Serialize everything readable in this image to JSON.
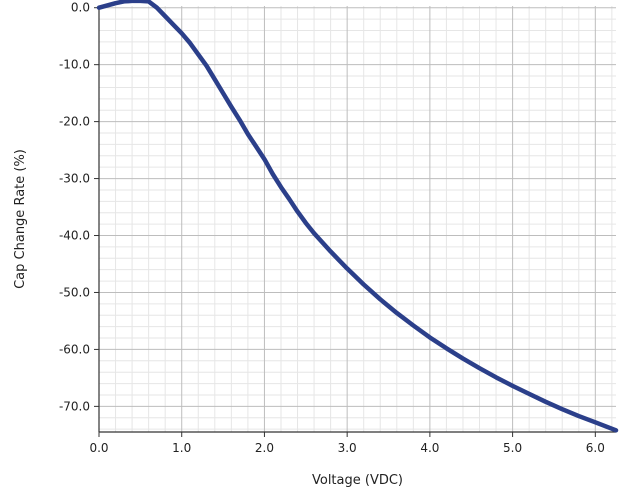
{
  "chart_data": {
    "type": "line",
    "title": "",
    "xlabel": "Voltage (VDC)",
    "ylabel": "Cap Change Rate (%)",
    "xlim": [
      0.0,
      6.25
    ],
    "ylim": [
      -74.5,
      0.3
    ],
    "grid": true,
    "legend": "none",
    "x_ticks": [
      0.0,
      1.0,
      2.0,
      3.0,
      4.0,
      5.0,
      6.0
    ],
    "x_tick_labels": [
      "0.0",
      "1.0",
      "2.0",
      "3.0",
      "4.0",
      "5.0",
      "6.0"
    ],
    "y_ticks": [
      0.0,
      -10.0,
      -20.0,
      -30.0,
      -40.0,
      -50.0,
      -60.0,
      -70.0
    ],
    "y_tick_labels": [
      "0.0",
      "-10.0",
      "-20.0",
      "-30.0",
      "-40.0",
      "-50.0",
      "-60.0",
      "-70.0"
    ],
    "series": [
      {
        "color": "#2b3f8a",
        "x": [
          0.0,
          0.1,
          0.2,
          0.3,
          0.4,
          0.5,
          0.6,
          0.7,
          0.8,
          0.9,
          1.0,
          1.1,
          1.2,
          1.3,
          1.4,
          1.5,
          1.6,
          1.7,
          1.8,
          1.9,
          2.0,
          2.1,
          2.2,
          2.3,
          2.4,
          2.5,
          2.6,
          2.7,
          2.8,
          2.9,
          3.0,
          3.2,
          3.4,
          3.6,
          3.8,
          4.0,
          4.2,
          4.4,
          4.6,
          4.8,
          5.0,
          5.2,
          5.4,
          5.6,
          5.8,
          6.0,
          6.25
        ],
        "y": [
          0.0,
          0.4,
          0.8,
          1.1,
          1.2,
          1.2,
          1.1,
          0.0,
          -1.5,
          -3.0,
          -4.5,
          -6.2,
          -8.2,
          -10.2,
          -12.6,
          -15.0,
          -17.4,
          -19.7,
          -22.2,
          -24.4,
          -26.6,
          -29.2,
          -31.5,
          -33.6,
          -35.8,
          -37.8,
          -39.6,
          -41.2,
          -42.8,
          -44.3,
          -45.8,
          -48.6,
          -51.2,
          -53.6,
          -55.8,
          -57.9,
          -59.8,
          -61.6,
          -63.3,
          -64.9,
          -66.4,
          -67.8,
          -69.2,
          -70.5,
          -71.7,
          -72.8,
          -74.2
        ]
      }
    ]
  }
}
